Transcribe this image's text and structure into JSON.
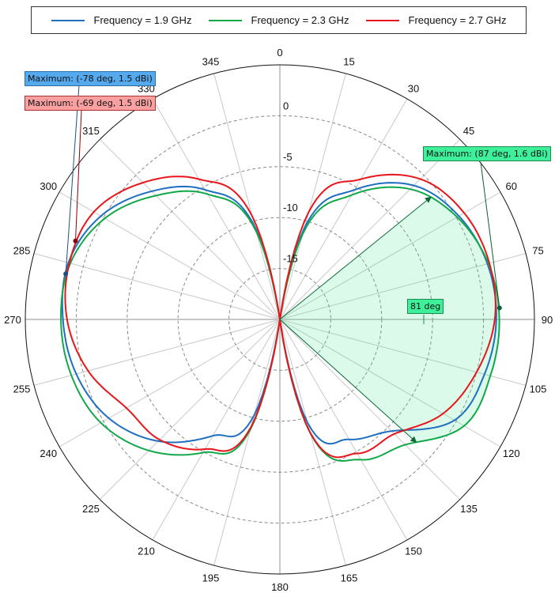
{
  "legend": {
    "items": [
      {
        "label": "Frequency = 1.9 GHz",
        "color": "#1f6fc0"
      },
      {
        "label": "Frequency = 2.3 GHz",
        "color": "#12a84a"
      },
      {
        "label": "Frequency = 2.7 GHz",
        "color": "#e8161b"
      }
    ]
  },
  "callouts": {
    "blue_max": "Maximum: (-78 deg, 1.5 dBi)",
    "red_max": "Maximum: (-69 deg, 1.5 dBi)",
    "green_max": "Maximum: (87 deg, 1.6 dBi)",
    "beamwidth": "81 deg"
  },
  "chart_data": {
    "type": "polar",
    "title": "",
    "angle_unit": "deg",
    "angle_direction": "clockwise",
    "angle_zero": "top",
    "angle_ticks": [
      0,
      15,
      30,
      45,
      60,
      75,
      90,
      105,
      120,
      135,
      150,
      165,
      180,
      195,
      210,
      225,
      240,
      255,
      270,
      285,
      300,
      315,
      330,
      345
    ],
    "radial_unit": "dBi",
    "radial_ticks": [
      -15,
      -10,
      -5,
      0
    ],
    "rlim": [
      -20,
      5
    ],
    "grid": true,
    "legend_position": "top",
    "angles": [
      0,
      15,
      30,
      45,
      60,
      75,
      90,
      105,
      120,
      135,
      150,
      165,
      180,
      195,
      210,
      225,
      240,
      255,
      270,
      285,
      300,
      315,
      330,
      345
    ],
    "series": [
      {
        "name": "Frequency = 1.9 GHz",
        "color": "#1f6fc0",
        "values": [
          -30,
          -10.7,
          -5.3,
          -1.4,
          0.3,
          1.1,
          1.25,
          0.8,
          -0.2,
          -4.5,
          -6.4,
          -9.5,
          -30,
          -10.3,
          -6.8,
          -3.1,
          -0.6,
          0.7,
          1.3,
          1.5,
          0.3,
          -2.2,
          -5.3,
          -10.7
        ]
      },
      {
        "name": "Frequency = 2.3 GHz",
        "color": "#12a84a",
        "values": [
          -30,
          -11.3,
          -5.9,
          -1.9,
          0.1,
          1.2,
          1.55,
          1.4,
          0.9,
          -2.6,
          -4.1,
          -8.4,
          -30,
          -8.8,
          -4.9,
          -1.8,
          0.3,
          1.2,
          1.5,
          1.3,
          -0.15,
          -2.8,
          -5.8,
          -11.1
        ]
      },
      {
        "name": "Frequency = 2.7 GHz",
        "color": "#e8161b",
        "values": [
          -30,
          -9.1,
          -4.1,
          -0.5,
          0.9,
          1.3,
          1.1,
          0.0,
          -1.5,
          -4.1,
          -4.8,
          -8.5,
          -30,
          -9.1,
          -5.3,
          -3.3,
          -2.6,
          -0.5,
          0.9,
          1.4,
          1.1,
          -1.0,
          -4.1,
          -9.5
        ]
      }
    ],
    "annotations": [
      {
        "text": "Maximum: (-78 deg, 1.5 dBi)",
        "series": "Frequency = 1.9 GHz",
        "angle": -78,
        "value": 1.5
      },
      {
        "text": "Maximum: (-69 deg, 1.5 dBi)",
        "series": "Frequency = 2.7 GHz",
        "angle": -69,
        "value": 1.5
      },
      {
        "text": "Maximum: (87 deg, 1.6 dBi)",
        "series": "Frequency = 2.3 GHz",
        "angle": 87,
        "value": 1.6
      },
      {
        "text": "81 deg",
        "type": "beamwidth",
        "series": "Frequency = 2.3 GHz",
        "from_angle": 51,
        "to_angle": 132
      }
    ]
  }
}
